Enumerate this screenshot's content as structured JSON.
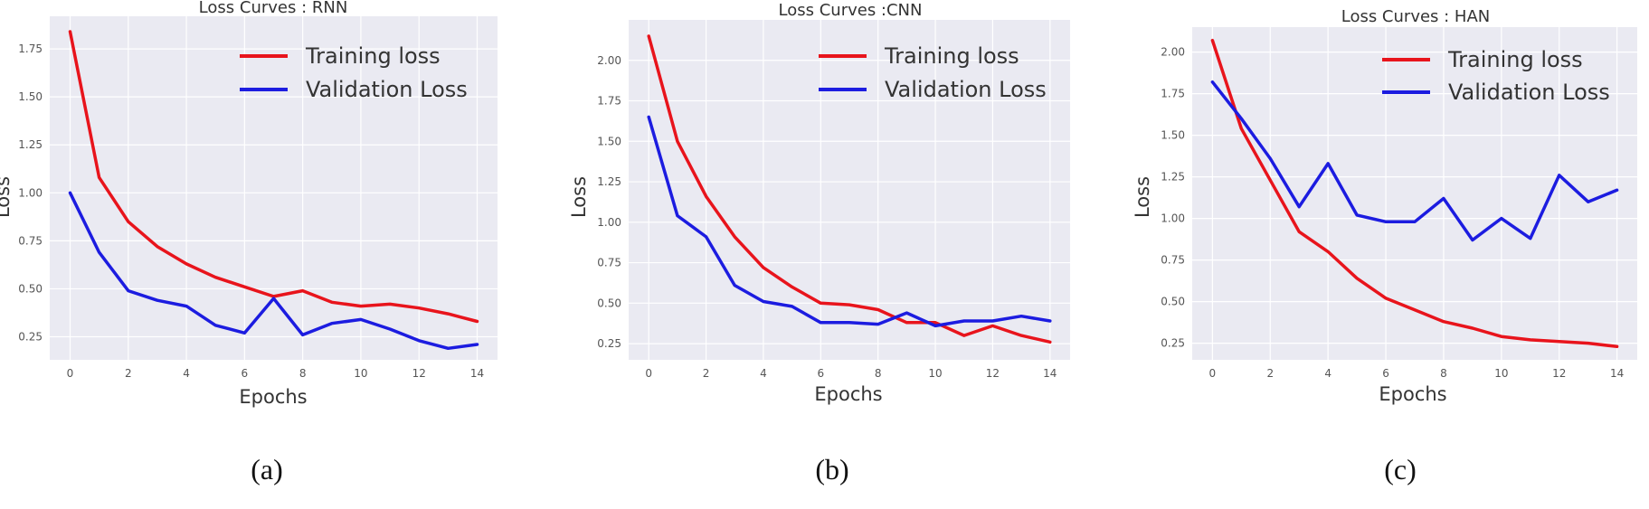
{
  "figure": {
    "panels": [
      {
        "caption": "(a)"
      },
      {
        "caption": "(b)"
      },
      {
        "caption": "(c)"
      }
    ]
  },
  "chart_data": [
    {
      "type": "line",
      "title": "Loss Curves : RNN",
      "xlabel": "Epochs",
      "ylabel": "Loss",
      "x": [
        0,
        1,
        2,
        3,
        4,
        5,
        6,
        7,
        8,
        9,
        10,
        11,
        12,
        13,
        14
      ],
      "xticks": [
        "0",
        "2",
        "4",
        "6",
        "8",
        "10",
        "12",
        "14"
      ],
      "yticks": [
        "0.25",
        "0.50",
        "0.75",
        "1.00",
        "1.25",
        "1.50",
        "1.75"
      ],
      "xlim": [
        -0.7,
        14.7
      ],
      "ylim": [
        0.13,
        1.92
      ],
      "grid": true,
      "legend": "top-right",
      "series": [
        {
          "name": "Training loss",
          "color": "#e8141c",
          "values": [
            1.84,
            1.08,
            0.85,
            0.72,
            0.63,
            0.56,
            0.51,
            0.46,
            0.49,
            0.43,
            0.41,
            0.42,
            0.4,
            0.37,
            0.33
          ]
        },
        {
          "name": "Validation Loss",
          "color": "#1c1ce0",
          "values": [
            1.0,
            0.69,
            0.49,
            0.44,
            0.41,
            0.31,
            0.27,
            0.45,
            0.26,
            0.32,
            0.34,
            0.29,
            0.23,
            0.19,
            0.21
          ]
        }
      ]
    },
    {
      "type": "line",
      "title": "Loss Curves :CNN",
      "xlabel": "Epochs",
      "ylabel": "Loss",
      "x": [
        0,
        1,
        2,
        3,
        4,
        5,
        6,
        7,
        8,
        9,
        10,
        11,
        12,
        13,
        14
      ],
      "xticks": [
        "0",
        "2",
        "4",
        "6",
        "8",
        "10",
        "12",
        "14"
      ],
      "yticks": [
        "0.25",
        "0.50",
        "0.75",
        "1.00",
        "1.25",
        "1.50",
        "1.75",
        "2.00"
      ],
      "xlim": [
        -0.7,
        14.7
      ],
      "ylim": [
        0.15,
        2.25
      ],
      "grid": true,
      "legend": "top-right",
      "series": [
        {
          "name": "Training loss",
          "color": "#e8141c",
          "values": [
            2.15,
            1.5,
            1.16,
            0.91,
            0.72,
            0.6,
            0.5,
            0.49,
            0.46,
            0.38,
            0.38,
            0.3,
            0.36,
            0.3,
            0.26
          ]
        },
        {
          "name": "Validation Loss",
          "color": "#1c1ce0",
          "values": [
            1.65,
            1.04,
            0.91,
            0.61,
            0.51,
            0.48,
            0.38,
            0.38,
            0.37,
            0.44,
            0.36,
            0.39,
            0.39,
            0.42,
            0.39
          ]
        }
      ]
    },
    {
      "type": "line",
      "title": "Loss Curves : HAN",
      "xlabel": "Epochs",
      "ylabel": "Loss",
      "x": [
        0,
        1,
        2,
        3,
        4,
        5,
        6,
        7,
        8,
        9,
        10,
        11,
        12,
        13,
        14
      ],
      "xticks": [
        "0",
        "2",
        "4",
        "6",
        "8",
        "10",
        "12",
        "14"
      ],
      "yticks": [
        "0.25",
        "0.50",
        "0.75",
        "1.00",
        "1.25",
        "1.50",
        "1.75",
        "2.00"
      ],
      "xlim": [
        -0.7,
        14.7
      ],
      "ylim": [
        0.15,
        2.15
      ],
      "grid": true,
      "legend": "top-right",
      "series": [
        {
          "name": "Training loss",
          "color": "#e8141c",
          "values": [
            2.07,
            1.54,
            1.23,
            0.92,
            0.8,
            0.64,
            0.52,
            0.45,
            0.38,
            0.34,
            0.29,
            0.27,
            0.26,
            0.25,
            0.23
          ]
        },
        {
          "name": "Validation Loss",
          "color": "#1c1ce0",
          "values": [
            1.82,
            1.6,
            1.36,
            1.07,
            1.33,
            1.02,
            0.98,
            0.98,
            1.12,
            0.87,
            1.0,
            0.88,
            1.26,
            1.1,
            1.17
          ]
        }
      ]
    }
  ]
}
